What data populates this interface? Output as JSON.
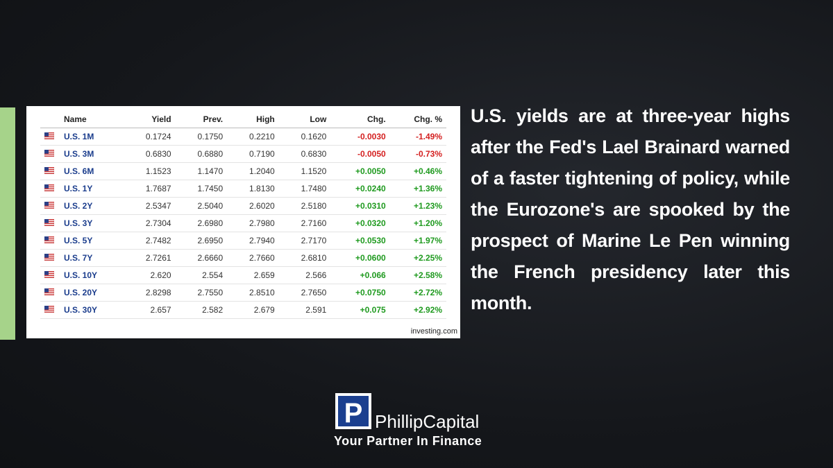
{
  "table": {
    "columns": [
      "Name",
      "Yield",
      "Prev.",
      "High",
      "Low",
      "Chg.",
      "Chg. %"
    ],
    "rows": [
      [
        "U.S. 1M",
        "0.1724",
        "0.1750",
        "0.2210",
        "0.1620",
        "-0.0030",
        "-1.49%"
      ],
      [
        "U.S. 3M",
        "0.6830",
        "0.6880",
        "0.7190",
        "0.6830",
        "-0.0050",
        "-0.73%"
      ],
      [
        "U.S. 6M",
        "1.1523",
        "1.1470",
        "1.2040",
        "1.1520",
        "+0.0050",
        "+0.46%"
      ],
      [
        "U.S. 1Y",
        "1.7687",
        "1.7450",
        "1.8130",
        "1.7480",
        "+0.0240",
        "+1.36%"
      ],
      [
        "U.S. 2Y",
        "2.5347",
        "2.5040",
        "2.6020",
        "2.5180",
        "+0.0310",
        "+1.23%"
      ],
      [
        "U.S. 3Y",
        "2.7304",
        "2.6980",
        "2.7980",
        "2.7160",
        "+0.0320",
        "+1.20%"
      ],
      [
        "U.S. 5Y",
        "2.7482",
        "2.6950",
        "2.7940",
        "2.7170",
        "+0.0530",
        "+1.97%"
      ],
      [
        "U.S. 7Y",
        "2.7261",
        "2.6660",
        "2.7660",
        "2.6810",
        "+0.0600",
        "+2.25%"
      ],
      [
        "U.S. 10Y",
        "2.620",
        "2.554",
        "2.659",
        "2.566",
        "+0.066",
        "+2.58%"
      ],
      [
        "U.S. 20Y",
        "2.8298",
        "2.7550",
        "2.8510",
        "2.7650",
        "+0.0750",
        "+2.72%"
      ],
      [
        "U.S. 30Y",
        "2.657",
        "2.582",
        "2.679",
        "2.591",
        "+0.075",
        "+2.92%"
      ]
    ],
    "source": "investing.com"
  },
  "text": "U.S. yields are at three-year highs after the Fed's Lael Brainard warned of a faster tightening of policy, while the Eurozone's are spooked by the prospect of Marine Le Pen winning the French presidency later this month.",
  "logo": {
    "letter": "P",
    "name": "PhillipCapital",
    "tagline": "Your Partner In Finance"
  }
}
